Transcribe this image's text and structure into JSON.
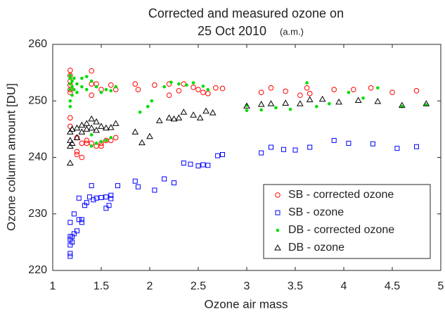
{
  "chart_data": {
    "type": "scatter",
    "title": [
      "Corrected and measured ozone on",
      "25 Oct 2010"
    ],
    "title_note": "(a.m.)",
    "xlabel": "Ozone air mass",
    "ylabel": "Ozone column amount [DU]",
    "xlim": [
      1,
      5
    ],
    "ylim": [
      220,
      260
    ],
    "xticks": [
      1,
      1.5,
      2,
      2.5,
      3,
      3.5,
      4,
      4.5,
      5
    ],
    "yticks": [
      220,
      230,
      240,
      250,
      260
    ],
    "grid": false,
    "legend": "lower right",
    "series": [
      {
        "name": "SB - corrected ozone",
        "color": "#ff0000",
        "marker": "circle",
        "x": [
          1.18,
          1.18,
          1.18,
          1.18,
          1.18,
          1.18,
          1.18,
          1.18,
          1.25,
          1.25,
          1.25,
          1.3,
          1.3,
          1.35,
          1.35,
          1.4,
          1.4,
          1.4,
          1.4,
          1.45,
          1.45,
          1.5,
          1.5,
          1.5,
          1.55,
          1.6,
          1.6,
          1.65,
          1.65,
          1.85,
          1.88,
          2.05,
          2.2,
          2.2,
          2.3,
          2.35,
          2.45,
          2.5,
          2.55,
          2.6,
          2.68,
          2.75,
          3.15,
          3.25,
          3.4,
          3.55,
          3.62,
          3.65,
          3.9,
          4.1,
          4.28,
          4.5,
          4.75
        ],
        "values": [
          255.4,
          254.5,
          253.5,
          252.8,
          252,
          251.5,
          247,
          245.5,
          243.5,
          241,
          240.5,
          242.5,
          240,
          242.5,
          243,
          253,
          255.3,
          251,
          242.5,
          242,
          253,
          242.5,
          252,
          242,
          243,
          252.8,
          243,
          252,
          243.5,
          253,
          252,
          252.8,
          253,
          251,
          251.8,
          253,
          252.4,
          252,
          251.5,
          251.3,
          252.3,
          252.2,
          251.5,
          252.3,
          251.7,
          251,
          252.3,
          251.3,
          252,
          252,
          252.3,
          251.5,
          251.8
        ]
      },
      {
        "name": "SB - ozone",
        "color": "#0000ff",
        "marker": "square",
        "x": [
          1.18,
          1.18,
          1.18,
          1.18,
          1.18,
          1.18,
          1.2,
          1.2,
          1.22,
          1.22,
          1.25,
          1.27,
          1.27,
          1.3,
          1.3,
          1.33,
          1.35,
          1.38,
          1.4,
          1.42,
          1.45,
          1.5,
          1.55,
          1.55,
          1.58,
          1.6,
          1.6,
          1.67,
          1.85,
          1.88,
          2.05,
          2.15,
          2.25,
          2.35,
          2.42,
          2.5,
          2.55,
          2.6,
          2.7,
          2.75,
          3.15,
          3.25,
          3.38,
          3.5,
          3.65,
          3.9,
          4.05,
          4.3,
          4.55,
          4.75
        ],
        "values": [
          222.5,
          223,
          224.5,
          225.5,
          226,
          228.5,
          225,
          226,
          226.5,
          230,
          227,
          229,
          232.8,
          229,
          228.5,
          231.5,
          232,
          233,
          235,
          232.5,
          232.8,
          232.9,
          233,
          231,
          231.5,
          233.3,
          232.7,
          235,
          235.8,
          234.8,
          234.2,
          236.2,
          235.5,
          239,
          238.8,
          238.5,
          238.7,
          238.6,
          240.3,
          240.5,
          240.8,
          241.8,
          241.4,
          241.3,
          241.8,
          243,
          242.5,
          242.4,
          241.6,
          241.9
        ]
      },
      {
        "name": "DB - corrected ozone",
        "color": "#00dd00",
        "marker": "dot",
        "x": [
          1.18,
          1.18,
          1.18,
          1.18,
          1.18,
          1.18,
          1.2,
          1.2,
          1.2,
          1.22,
          1.22,
          1.25,
          1.25,
          1.3,
          1.3,
          1.35,
          1.35,
          1.4,
          1.4,
          1.4,
          1.45,
          1.45,
          1.5,
          1.5,
          1.55,
          1.55,
          1.6,
          1.6,
          1.65,
          1.9,
          1.98,
          2.02,
          2.15,
          2.22,
          2.3,
          2.38,
          2.45,
          2.55,
          2.6,
          3,
          3,
          3.15,
          3.3,
          3.45,
          3.62,
          3.72,
          3.85,
          4.05,
          4.2,
          4.35,
          4.6,
          4.85
        ],
        "values": [
          249,
          250,
          252,
          253,
          254,
          254.5,
          251,
          253.5,
          252.5,
          254,
          252,
          253,
          251.5,
          252.5,
          254,
          252,
          254.3,
          253.5,
          244,
          242,
          252.5,
          242.5,
          251.5,
          242.8,
          252,
          243,
          251.8,
          243.5,
          252.5,
          248,
          249,
          250,
          252.5,
          253.3,
          253,
          252.8,
          253.2,
          252.6,
          252,
          249.2,
          248.3,
          248.4,
          248.8,
          248.5,
          253.2,
          249,
          249.5,
          251.5,
          250.5,
          252.3,
          249,
          249.3
        ]
      },
      {
        "name": "DB - ozone",
        "color": "#000000",
        "marker": "triangle",
        "x": [
          1.18,
          1.18,
          1.18,
          1.18,
          1.2,
          1.2,
          1.25,
          1.25,
          1.3,
          1.3,
          1.35,
          1.35,
          1.4,
          1.4,
          1.45,
          1.45,
          1.5,
          1.55,
          1.6,
          1.65,
          1.85,
          1.92,
          2,
          2.1,
          2.2,
          2.25,
          2.3,
          2.35,
          2.45,
          2.52,
          2.58,
          2.65,
          3,
          3.15,
          3.25,
          3.4,
          3.55,
          3.65,
          3.78,
          3.95,
          4.15,
          4.35,
          4.6,
          4.85
        ],
        "values": [
          239,
          242,
          243,
          244.5,
          245,
          242.5,
          245.2,
          243.5,
          244.5,
          245.7,
          246,
          245,
          246.8,
          245.2,
          246.3,
          244.8,
          245.5,
          245.2,
          245.3,
          246,
          244.5,
          242.6,
          243.7,
          246.5,
          247,
          246.8,
          247,
          248,
          247.5,
          247,
          248.2,
          247.9,
          249.1,
          249.4,
          249.5,
          249.6,
          249.5,
          250.2,
          250.3,
          249.8,
          250.1,
          249.9,
          249.2,
          249.5
        ]
      }
    ]
  }
}
